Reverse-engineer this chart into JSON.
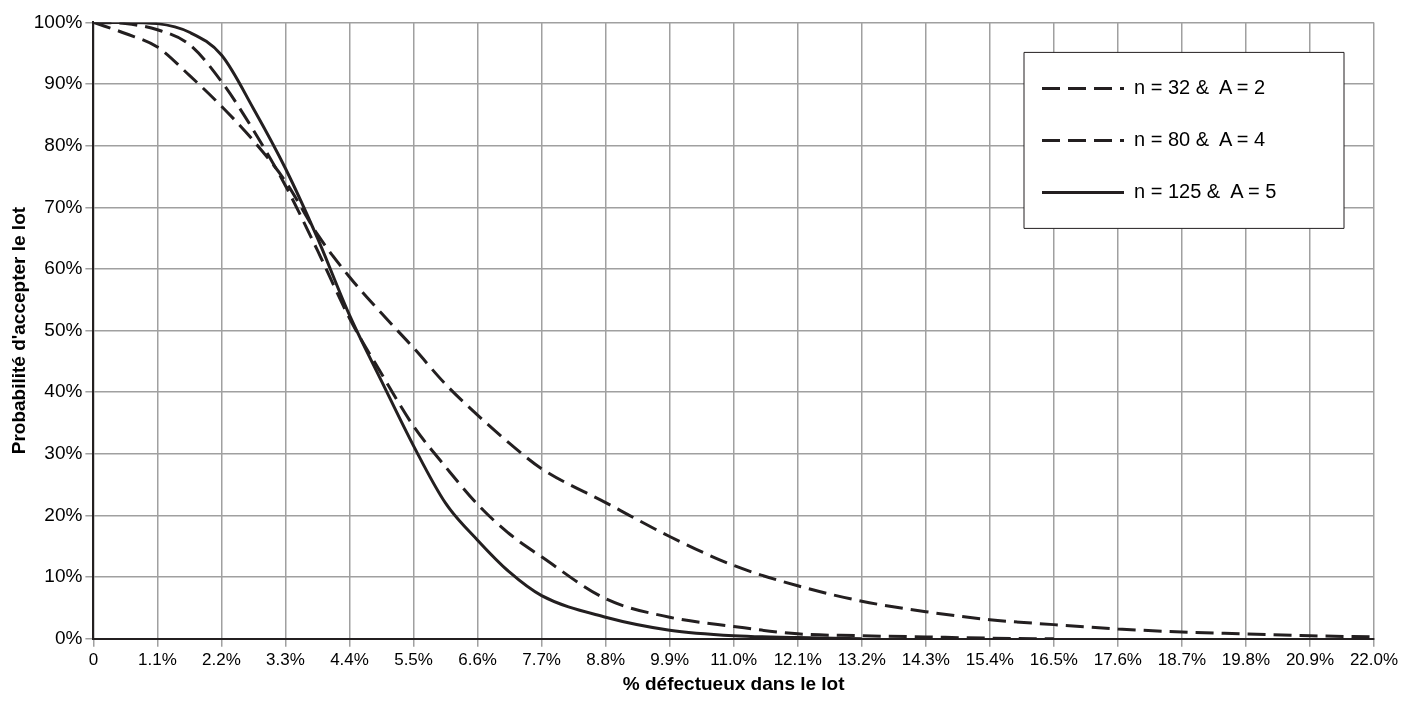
{
  "chart_data": {
    "type": "line",
    "xlabel": "% défectueux dans le lot",
    "ylabel": "Probabilité d'accepter le lot",
    "x": [
      0,
      0.55,
      1.1,
      1.65,
      2.2,
      2.75,
      3.3,
      3.85,
      4.4,
      4.95,
      5.5,
      6.05,
      6.6,
      7.15,
      7.7,
      8.8,
      9.9,
      11.0,
      12.1,
      13.2,
      14.3,
      15.4,
      16.5,
      17.6,
      18.7,
      19.8,
      20.9,
      22.0
    ],
    "series": [
      {
        "name": "n = 32 &  A = 2",
        "color": "#231f20",
        "line_style": "dashed",
        "values": [
          100,
          98.2,
          96,
          91.4,
          86.4,
          80.8,
          74.2,
          65.6,
          58.7,
          52.8,
          47.2,
          41.3,
          36.3,
          31.7,
          27.6,
          22.1,
          16.6,
          11.9,
          8.6,
          6.1,
          4.4,
          3.1,
          2.3,
          1.6,
          1.1,
          0.8,
          0.5,
          0.3
        ]
      },
      {
        "name": "n = 80 &  A = 4",
        "color": "#231f20",
        "line_style": "dashed",
        "values": [
          100,
          99.8,
          98.8,
          96.4,
          90.4,
          82.5,
          73.5,
          63,
          52,
          43,
          34.5,
          27.9,
          21.8,
          17,
          13.3,
          6.5,
          3.5,
          2,
          0.8,
          0.5,
          0.3,
          0.1,
          0,
          null,
          null,
          null,
          null,
          null
        ]
      },
      {
        "name": "n = 125 &  A = 5",
        "color": "#231f20",
        "line_style": "solid",
        "values": [
          100,
          100,
          99.8,
          98.4,
          94.7,
          86,
          76.3,
          65,
          52.5,
          41.8,
          31.3,
          22,
          16,
          10.8,
          7,
          3.5,
          1.4,
          0.5,
          0.2,
          0,
          null,
          null,
          null,
          null,
          null,
          null,
          null,
          null
        ]
      }
    ],
    "xlim": [
      0,
      22.0
    ],
    "xticks": [
      0,
      {
        "value": 1.1,
        "label": "1.1%"
      },
      {
        "value": 2.2,
        "label": "2.2%"
      },
      {
        "value": 3.3,
        "label": "3.3%"
      },
      {
        "value": 4.4,
        "label": "4.4%"
      },
      {
        "value": 5.5,
        "label": "5.5%"
      },
      {
        "value": 6.6,
        "label": "6.6%"
      },
      {
        "value": 7.7,
        "label": "7.7%"
      },
      {
        "value": 8.8,
        "label": "8.8%"
      },
      {
        "value": 9.9,
        "label": "9.9%"
      },
      {
        "value": 11.0,
        "label": "11.0%"
      },
      {
        "value": 12.1,
        "label": "12.1%"
      },
      {
        "value": 13.2,
        "label": "13.2%"
      },
      {
        "value": 14.3,
        "label": "14.3%"
      },
      {
        "value": 15.4,
        "label": "15.4%"
      },
      {
        "value": 16.5,
        "label": "16.5%"
      },
      {
        "value": 17.6,
        "label": "17.6%"
      },
      {
        "value": 18.7,
        "label": "18.7%"
      },
      {
        "value": 19.8,
        "label": "19.8%"
      },
      {
        "value": 20.9,
        "label": "20.9%"
      },
      {
        "value": 22.0,
        "label": "22.0%"
      }
    ],
    "ylim": [
      0,
      100
    ],
    "yticks": [
      {
        "value": 0,
        "label": "0%"
      },
      {
        "value": 10,
        "label": "10%"
      },
      {
        "value": 20,
        "label": "20%"
      },
      {
        "value": 30,
        "label": "30%"
      },
      {
        "value": 40,
        "label": "40%"
      },
      {
        "value": 50,
        "label": "50%"
      },
      {
        "value": 60,
        "label": "60%"
      },
      {
        "value": 70,
        "label": "70%"
      },
      {
        "value": 80,
        "label": "80%"
      },
      {
        "value": 90,
        "label": "90%"
      },
      {
        "value": 100,
        "label": "100%"
      }
    ],
    "grid": true,
    "legend": "top right",
    "marker": "none"
  }
}
